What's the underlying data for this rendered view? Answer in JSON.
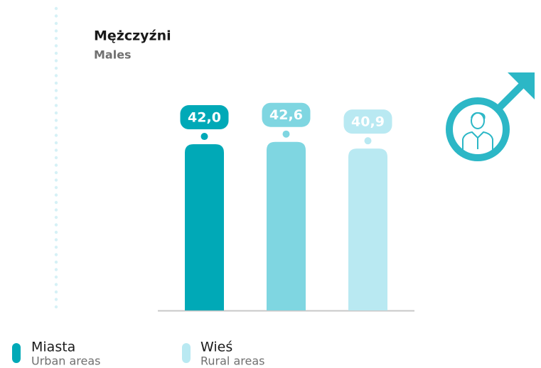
{
  "chart_data": {
    "type": "bar",
    "title": "Mężczyźni",
    "subtitle": "Males",
    "categories": [
      null,
      null,
      null
    ],
    "values": [
      42.0,
      42.6,
      40.9
    ],
    "value_labels": [
      "42,0",
      "42,6",
      "40,9"
    ],
    "colors": [
      "#00a9b7",
      "#7fd6e1",
      "#b9e9f2"
    ],
    "legend": [
      {
        "name": "Miasta",
        "subtitle": "Urban areas",
        "color": "#00a9b7"
      },
      {
        "name": "Wieś",
        "subtitle": "Rural areas",
        "color": "#b9e9f2"
      }
    ]
  }
}
